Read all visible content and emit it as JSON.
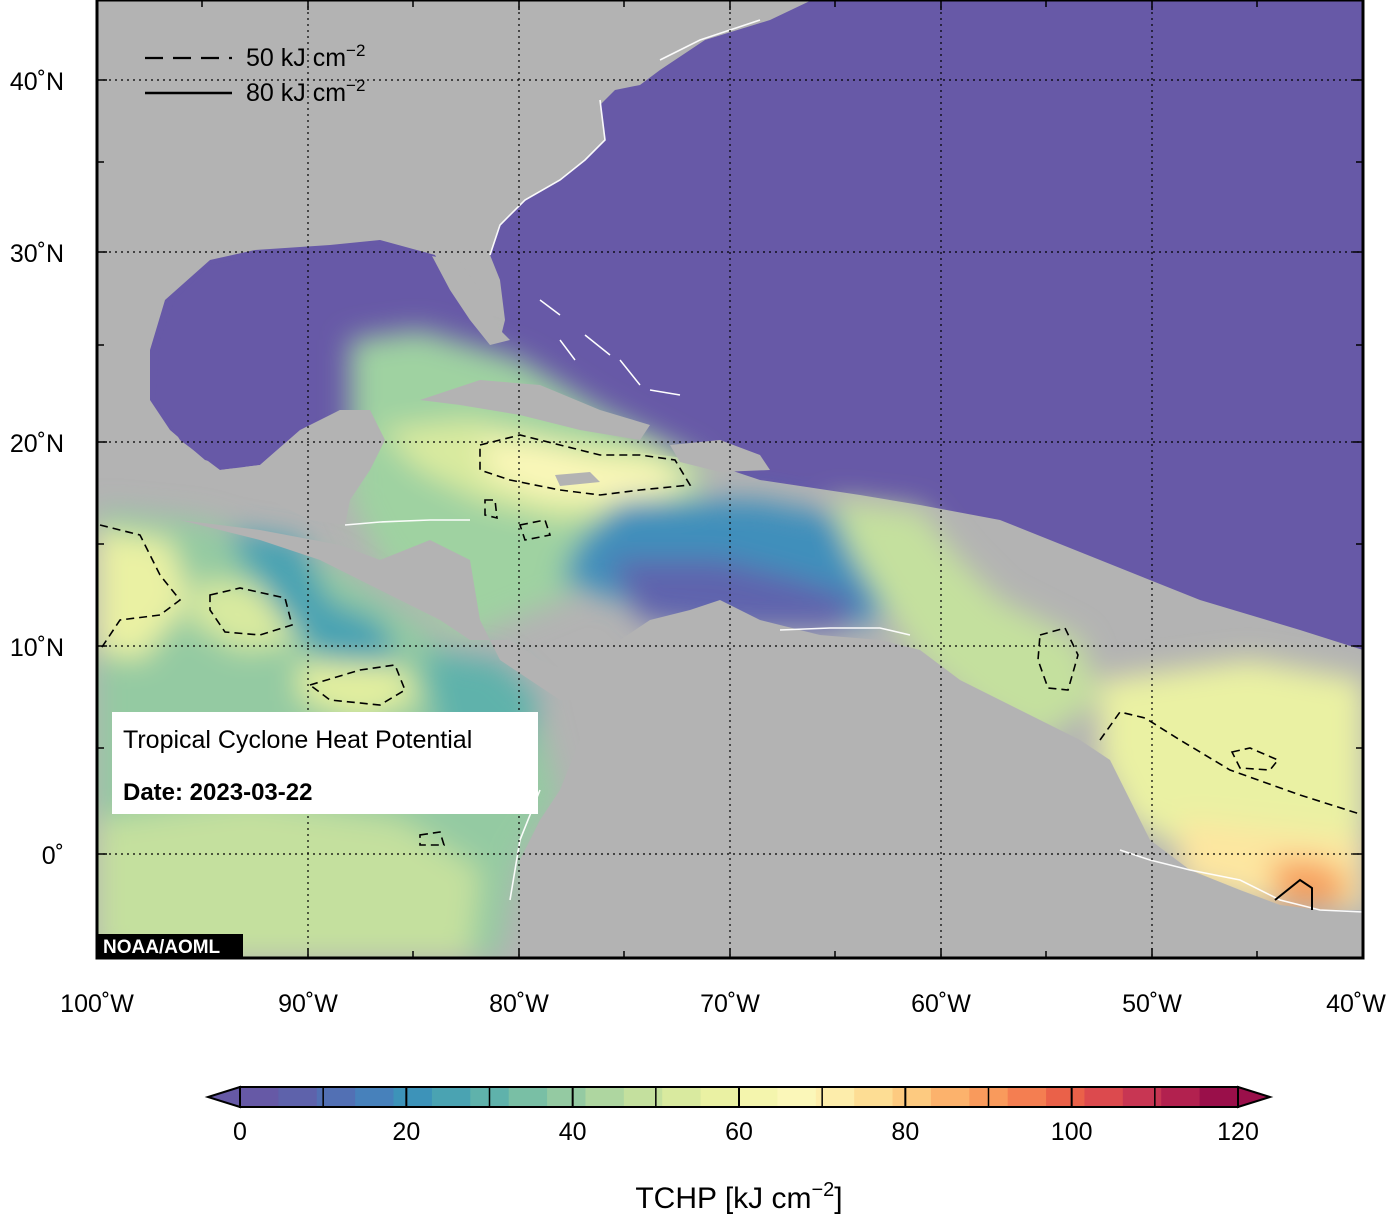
{
  "map": {
    "title": "Tropical Cyclone Heat Potential",
    "date_label": "Date: 2023-03-22",
    "credit": "NOAA/AOML",
    "lat_ticks": [
      "40˚N",
      "30˚N",
      "20˚N",
      "10˚N",
      "0˚"
    ],
    "lon_ticks": [
      "100˚W",
      "90˚W",
      "80˚W",
      "70˚W",
      "60˚W",
      "50˚W",
      "40˚W"
    ],
    "extent": {
      "lon": [
        -100,
        -40
      ],
      "lat": [
        -5,
        45
      ]
    },
    "legend": [
      {
        "style": "dashed",
        "text": "50 kJ cm",
        "sup": "−2"
      },
      {
        "style": "solid",
        "text": "80 kJ cm",
        "sup": "−2"
      }
    ],
    "colors": {
      "ocean_low": "#6759a7",
      "land": "#b3b3b3",
      "warm_peak": "#f7a15e"
    }
  },
  "colorbar": {
    "ticks": [
      "0",
      "20",
      "40",
      "60",
      "80",
      "100",
      "120"
    ],
    "title": "TCHP [kJ cm",
    "title_sup": "−2",
    "title_end": "]",
    "colors": [
      "#6659a6",
      "#5e62ab",
      "#5270b4",
      "#4781bb",
      "#3d93b9",
      "#4aa3b2",
      "#5fb2ab",
      "#79bfa5",
      "#94caa2",
      "#aed6a0",
      "#c4e09e",
      "#d9ea9f",
      "#eaf1a3",
      "#f4f5ad",
      "#fbf7b9",
      "#fdedab",
      "#fddd94",
      "#fdca80",
      "#fcb26c",
      "#f99a5c",
      "#f47e51",
      "#ea6149",
      "#dc4a4e",
      "#c83653",
      "#b2214f",
      "#9a0f4a"
    ]
  }
}
